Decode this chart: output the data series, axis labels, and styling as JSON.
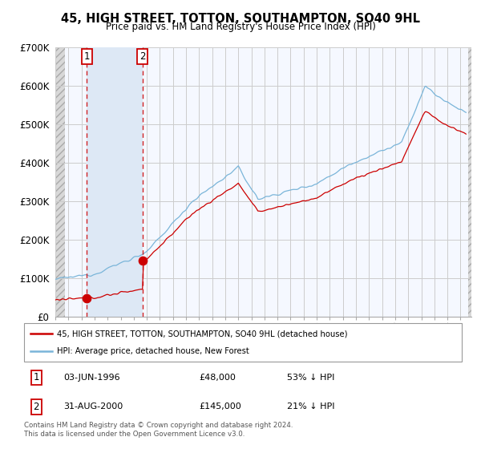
{
  "title": "45, HIGH STREET, TOTTON, SOUTHAMPTON, SO40 9HL",
  "subtitle": "Price paid vs. HM Land Registry's House Price Index (HPI)",
  "legend_line1": "45, HIGH STREET, TOTTON, SOUTHAMPTON, SO40 9HL (detached house)",
  "legend_line2": "HPI: Average price, detached house, New Forest",
  "transaction1_date": "03-JUN-1996",
  "transaction1_price": "£48,000",
  "transaction1_hpi": "53% ↓ HPI",
  "transaction1_year": 1996.42,
  "transaction1_val": 48000,
  "transaction2_date": "31-AUG-2000",
  "transaction2_price": "£145,000",
  "transaction2_hpi": "21% ↓ HPI",
  "transaction2_year": 2000.67,
  "transaction2_val": 145000,
  "footer": "Contains HM Land Registry data © Crown copyright and database right 2024.\nThis data is licensed under the Open Government Licence v3.0.",
  "hpi_color": "#7ab5d9",
  "price_color": "#cc0000",
  "shade_color": "#dde8f5",
  "hatch_color": "#c8c8c8",
  "grid_color": "#cccccc",
  "bg_color": "#f5f8ff",
  "ylim": [
    0,
    700000
  ],
  "xlim_start": 1994.0,
  "xlim_end": 2025.83,
  "hatch_left_end": 1994.75,
  "hatch_right_start": 2025.58,
  "yticks": [
    0,
    100000,
    200000,
    300000,
    400000,
    500000,
    600000,
    700000
  ],
  "ytick_labels": [
    "£0",
    "£100K",
    "£200K",
    "£300K",
    "£400K",
    "£500K",
    "£600K",
    "£700K"
  ]
}
